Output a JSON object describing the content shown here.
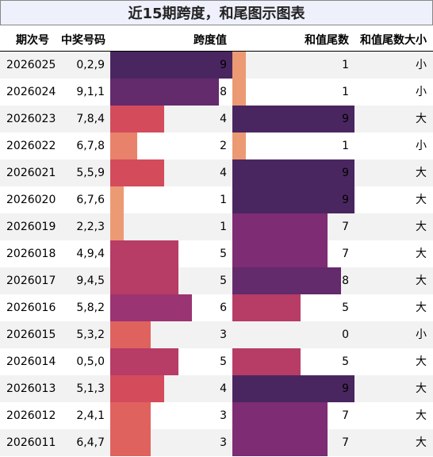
{
  "title": "近15期跨度，和尾图示图表",
  "headers": {
    "period": "期次号",
    "numbers": "中奖号码",
    "span": "跨度值",
    "tail": "和值尾数",
    "size": "和值尾数大小"
  },
  "rows": [
    {
      "period": "2026025",
      "numbers": "0,2,9",
      "span": 9,
      "tail": 1,
      "size": "小"
    },
    {
      "period": "2026024",
      "numbers": "9,1,1",
      "span": 8,
      "tail": 1,
      "size": "小"
    },
    {
      "period": "2026023",
      "numbers": "7,8,4",
      "span": 4,
      "tail": 9,
      "size": "大"
    },
    {
      "period": "2026022",
      "numbers": "6,7,8",
      "span": 2,
      "tail": 1,
      "size": "小"
    },
    {
      "period": "2026021",
      "numbers": "5,5,9",
      "span": 4,
      "tail": 9,
      "size": "大"
    },
    {
      "period": "2026020",
      "numbers": "6,7,6",
      "span": 1,
      "tail": 9,
      "size": "大"
    },
    {
      "period": "2026019",
      "numbers": "2,2,3",
      "span": 1,
      "tail": 7,
      "size": "大"
    },
    {
      "period": "2026018",
      "numbers": "4,9,4",
      "span": 5,
      "tail": 7,
      "size": "大"
    },
    {
      "period": "2026017",
      "numbers": "9,4,5",
      "span": 5,
      "tail": 8,
      "size": "大"
    },
    {
      "period": "2026016",
      "numbers": "5,8,2",
      "span": 6,
      "tail": 5,
      "size": "大"
    },
    {
      "period": "2026015",
      "numbers": "5,3,2",
      "span": 3,
      "tail": 0,
      "size": "小"
    },
    {
      "period": "2026014",
      "numbers": "0,5,0",
      "span": 5,
      "tail": 5,
      "size": "大"
    },
    {
      "period": "2026013",
      "numbers": "5,1,3",
      "span": 4,
      "tail": 9,
      "size": "大"
    },
    {
      "period": "2026012",
      "numbers": "2,4,1",
      "span": 3,
      "tail": 7,
      "size": "大"
    },
    {
      "period": "2026011",
      "numbers": "6,4,7",
      "span": 3,
      "tail": 7,
      "size": "大"
    }
  ],
  "colors": {
    "0": "#ffffff",
    "1": "#ec9a74",
    "2": "#e8826a",
    "3": "#e0625f",
    "4": "#d44b5c",
    "5": "#b73c66",
    "6": "#9a3472",
    "7": "#7e2c74",
    "8": "#632a6c",
    "9": "#4a2660"
  },
  "scale_max": 9
}
